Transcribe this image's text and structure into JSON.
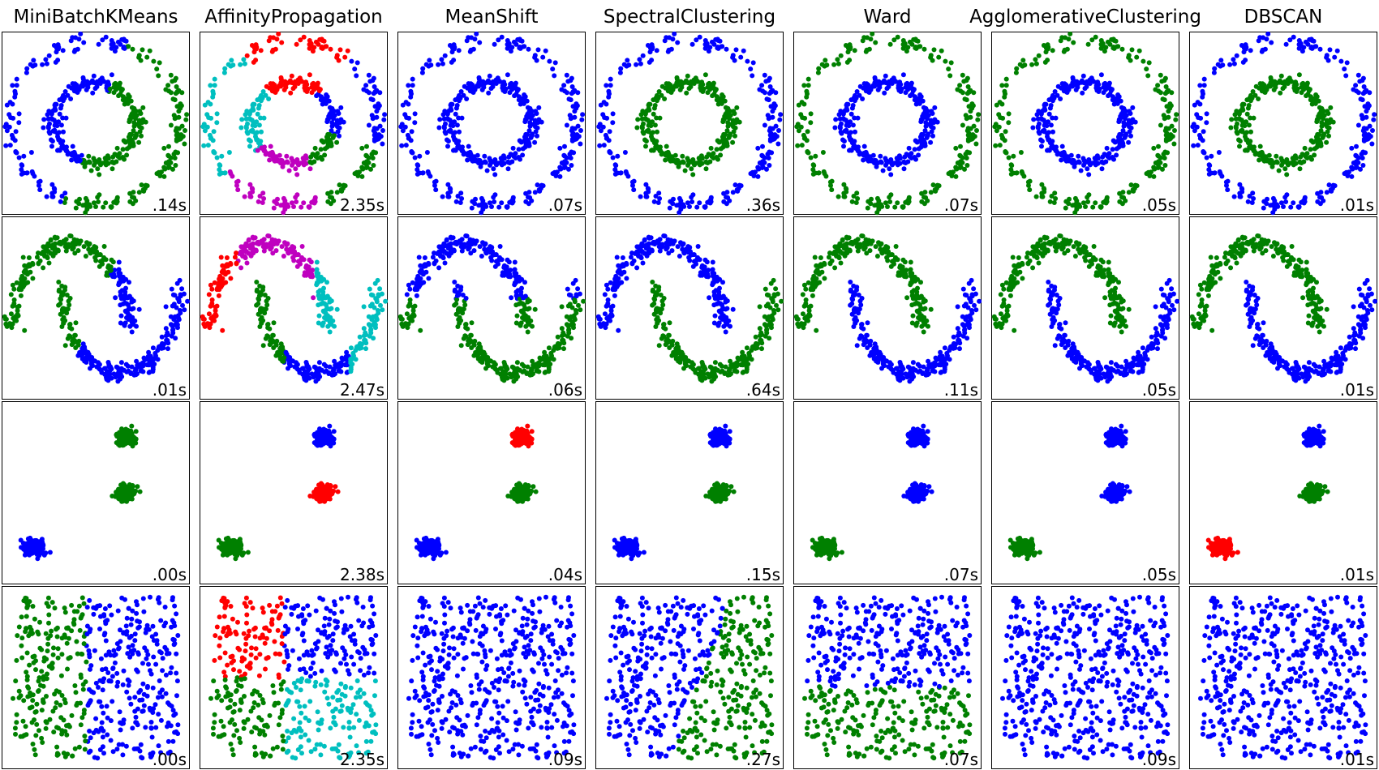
{
  "titles": [
    "MiniBatchKMeans",
    "AffinityPropagation",
    "MeanShift",
    "SpectralClustering",
    "Ward",
    "AgglomerativeClustering",
    "DBSCAN"
  ],
  "timings": [
    [
      ".14s",
      "2.35s",
      ".07s",
      ".36s",
      ".07s",
      ".05s",
      ".01s"
    ],
    [
      ".01s",
      "2.47s",
      ".06s",
      ".64s",
      ".11s",
      ".05s",
      ".01s"
    ],
    [
      ".00s",
      "2.38s",
      ".04s",
      ".15s",
      ".07s",
      ".05s",
      ".01s"
    ],
    [
      ".00s",
      "2.35s",
      ".09s",
      ".27s",
      ".07s",
      ".09s",
      ".01s"
    ]
  ]
}
